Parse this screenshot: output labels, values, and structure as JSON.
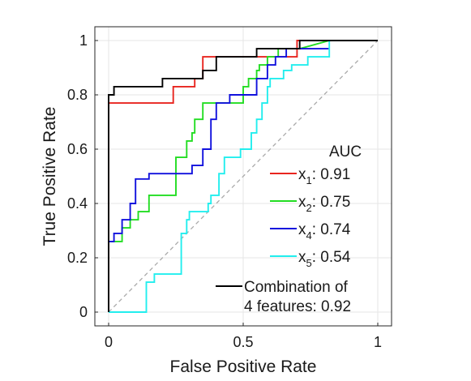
{
  "chart_data": {
    "type": "line",
    "xlabel": "False Positive Rate",
    "ylabel": "True Positive Rate",
    "xlim": [
      0,
      1
    ],
    "ylim": [
      0,
      1
    ],
    "x_ticks": [
      0,
      0.5,
      1
    ],
    "x_tick_labels": [
      "0",
      "0.5",
      "1"
    ],
    "y_ticks": [
      0,
      0.2,
      0.4,
      0.6,
      0.8,
      1
    ],
    "y_tick_labels": [
      "0",
      "0.2",
      "0.4",
      "0.6",
      "0.8",
      "1"
    ],
    "grid": true,
    "legend_position": "bottom-right",
    "legend_title": "AUC",
    "reference_line": {
      "x": [
        0,
        1
      ],
      "y": [
        0,
        1
      ],
      "style": "dashed",
      "color": "#aaaaaa"
    },
    "series": [
      {
        "name": "x1",
        "legend_base": "x",
        "legend_sub": "1",
        "legend_value": ": 0.91",
        "color": "#e8251f",
        "x": [
          0,
          0,
          0.02,
          0.2,
          0.24,
          0.24,
          0.32,
          0.32,
          0.35,
          0.35,
          0.7,
          0.7,
          1
        ],
        "y": [
          0,
          0.77,
          0.77,
          0.77,
          0.77,
          0.83,
          0.83,
          0.86,
          0.86,
          0.94,
          0.94,
          1,
          1
        ]
      },
      {
        "name": "x2",
        "legend_base": "x",
        "legend_sub": "2",
        "legend_value": ": 0.75",
        "color": "#22dd22",
        "x": [
          0,
          0.02,
          0.05,
          0.05,
          0.08,
          0.08,
          0.11,
          0.11,
          0.15,
          0.15,
          0.25,
          0.25,
          0.29,
          0.29,
          0.31,
          0.31,
          0.32,
          0.32,
          0.35,
          0.35,
          0.5,
          0.5,
          0.52,
          0.52,
          0.55,
          0.55,
          0.56,
          0.56,
          0.59,
          0.59,
          0.63,
          0.63,
          0.68,
          0.68,
          0.71,
          0.71,
          0.82
        ],
        "y": [
          0.26,
          0.26,
          0.26,
          0.31,
          0.31,
          0.34,
          0.34,
          0.37,
          0.37,
          0.43,
          0.43,
          0.57,
          0.57,
          0.63,
          0.63,
          0.66,
          0.66,
          0.71,
          0.71,
          0.77,
          0.77,
          0.83,
          0.83,
          0.86,
          0.86,
          0.89,
          0.89,
          0.91,
          0.91,
          0.94,
          0.94,
          0.97,
          0.97,
          0.97,
          0.97,
          0.97,
          1
        ]
      },
      {
        "name": "x4",
        "legend_base": "x",
        "legend_sub": "4",
        "legend_value": ": 0.74",
        "color": "#1111dd",
        "x": [
          0,
          0.02,
          0.02,
          0.05,
          0.05,
          0.08,
          0.08,
          0.1,
          0.1,
          0.15,
          0.15,
          0.31,
          0.31,
          0.35,
          0.35,
          0.38,
          0.38,
          0.4,
          0.4,
          0.45,
          0.45,
          0.47,
          0.47,
          0.55,
          0.55,
          0.59,
          0.59,
          0.62,
          0.62,
          0.66,
          0.66,
          0.82
        ],
        "y": [
          0.26,
          0.26,
          0.29,
          0.29,
          0.34,
          0.34,
          0.4,
          0.4,
          0.49,
          0.49,
          0.51,
          0.51,
          0.54,
          0.54,
          0.6,
          0.6,
          0.71,
          0.71,
          0.77,
          0.77,
          0.8,
          0.8,
          0.8,
          0.8,
          0.86,
          0.86,
          0.91,
          0.91,
          0.94,
          0.94,
          0.97,
          0.97
        ]
      },
      {
        "name": "x5",
        "legend_base": "x",
        "legend_sub": "5",
        "legend_value": ": 0.54",
        "color": "#22eeee",
        "x": [
          0,
          0.14,
          0.14,
          0.17,
          0.17,
          0.27,
          0.27,
          0.29,
          0.29,
          0.3,
          0.3,
          0.37,
          0.37,
          0.38,
          0.38,
          0.41,
          0.41,
          0.43,
          0.43,
          0.49,
          0.49,
          0.53,
          0.53,
          0.55,
          0.55,
          0.57,
          0.57,
          0.59,
          0.59,
          0.6,
          0.6,
          0.65,
          0.65,
          0.68,
          0.68,
          0.74,
          0.74,
          0.82,
          0.82
        ],
        "y": [
          0,
          0,
          0.11,
          0.11,
          0.14,
          0.14,
          0.29,
          0.29,
          0.34,
          0.34,
          0.37,
          0.37,
          0.4,
          0.4,
          0.43,
          0.43,
          0.51,
          0.51,
          0.57,
          0.57,
          0.6,
          0.6,
          0.66,
          0.66,
          0.71,
          0.71,
          0.77,
          0.77,
          0.83,
          0.83,
          0.86,
          0.86,
          0.89,
          0.89,
          0.91,
          0.91,
          0.94,
          0.94,
          1
        ]
      },
      {
        "name": "Combination of 4 features",
        "legend_line1": "Combination of",
        "legend_line2": "4 features: 0.92",
        "color": "#000000",
        "x": [
          0,
          0,
          0.02,
          0.02,
          0.06,
          0.06,
          0.2,
          0.2,
          0.35,
          0.35,
          0.4,
          0.4,
          0.45,
          0.45,
          0.55,
          0.55,
          0.71,
          0.71,
          1
        ],
        "y": [
          0,
          0.8,
          0.8,
          0.83,
          0.83,
          0.83,
          0.83,
          0.86,
          0.86,
          0.89,
          0.89,
          0.94,
          0.94,
          0.94,
          0.94,
          0.97,
          0.97,
          1,
          1
        ]
      }
    ]
  }
}
